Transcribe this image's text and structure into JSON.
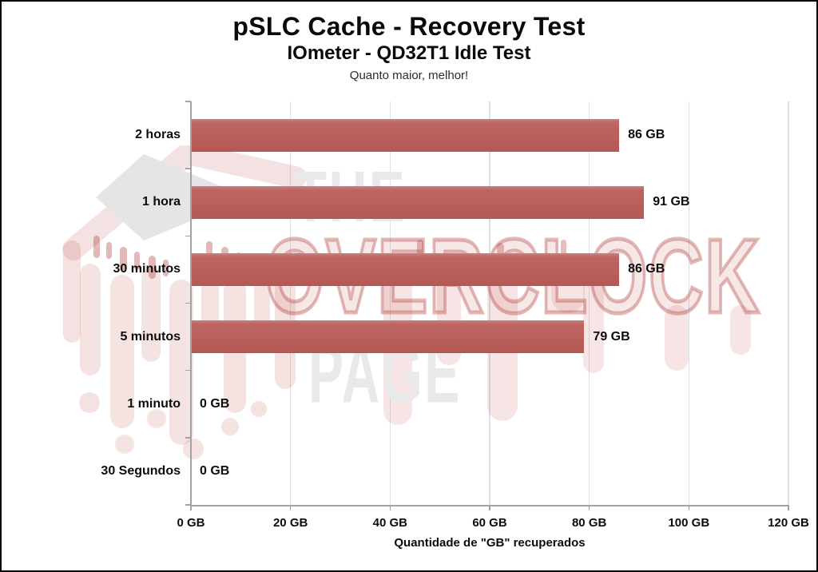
{
  "window": {
    "background": "#ffffff",
    "frame_color": "#000000"
  },
  "header": {
    "title": "pSLC Cache - Recovery Test",
    "subtitle": "IOmeter - QD32T1 Idle Test",
    "note": "Quanto maior, melhor!"
  },
  "watermark": {
    "line1": "THE",
    "line2": "OVERCLOCK",
    "line3": "PAGE",
    "grey_color": "#e9e9e9",
    "red_color": "#c0504d"
  },
  "chart_data": {
    "type": "bar",
    "orientation": "horizontal",
    "title": "pSLC Cache - Recovery Test",
    "subtitle": "IOmeter - QD32T1 Idle Test",
    "note": "Quanto maior, melhor!",
    "categories": [
      "2 horas",
      "1 hora",
      "30 minutos",
      "5 minutos",
      "1 minuto",
      "30 Segundos"
    ],
    "values": [
      86,
      91,
      86,
      79,
      0,
      0
    ],
    "unit": "GB",
    "data_labels": [
      "86 GB",
      "91 GB",
      "86 GB",
      "79 GB",
      "0 GB",
      "0 GB"
    ],
    "xlabel": "Quantidade de \"GB\" recuperados",
    "xlim": [
      0,
      120
    ],
    "x_tick_values": [
      0,
      20,
      40,
      60,
      80,
      100,
      120
    ],
    "x_tick_labels": [
      "0 GB",
      "20 GB",
      "40 GB",
      "60 GB",
      "80 GB",
      "100 GB",
      "120 GB"
    ],
    "grid": true,
    "legend": false,
    "bar_color": "#bb615e",
    "gridline_color": "#dce2e8",
    "axis_color": "#a3a3a3",
    "label_color": "#0c0c0c"
  }
}
